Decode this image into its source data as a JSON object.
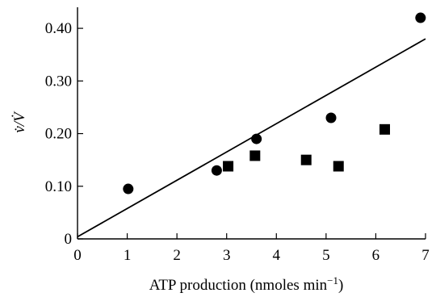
{
  "chart_data": {
    "type": "scatter",
    "xlabel_main": "ATP production (nmoles min",
    "xlabel_sup": "−1",
    "xlabel_close": ")",
    "ylabel": "v̇/V̇",
    "xlim": [
      0,
      7
    ],
    "ylim": [
      0,
      0.44
    ],
    "x_ticks": [
      0,
      1,
      2,
      3,
      4,
      5,
      6,
      7
    ],
    "x_tick_labels": [
      "0",
      "1",
      "2",
      "3",
      "4",
      "5",
      "6",
      "7"
    ],
    "y_ticks": [
      0,
      0.1,
      0.2,
      0.3,
      0.4
    ],
    "y_tick_labels": [
      "0",
      "0.10",
      "0.20",
      "0.30",
      "0.40"
    ],
    "grid": false,
    "series": [
      {
        "marker": "circle",
        "x": [
          1.02,
          2.8,
          3.6,
          5.1,
          6.9
        ],
        "y": [
          0.095,
          0.13,
          0.19,
          0.23,
          0.42
        ]
      },
      {
        "marker": "square",
        "x": [
          3.03,
          3.57,
          4.6,
          5.25,
          6.18
        ],
        "y": [
          0.138,
          0.158,
          0.15,
          0.138,
          0.208
        ]
      }
    ],
    "fit_line": {
      "x": [
        0,
        7
      ],
      "y": [
        0.004,
        0.38
      ]
    }
  }
}
